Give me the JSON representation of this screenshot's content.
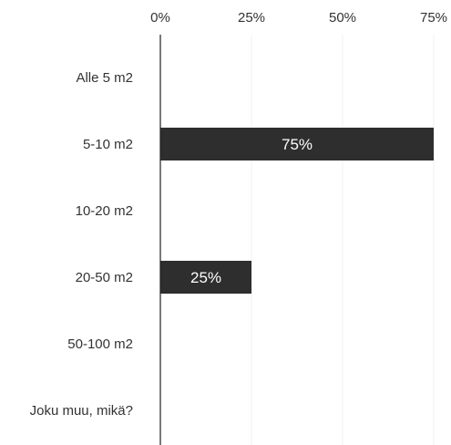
{
  "chart_data": {
    "type": "bar",
    "orientation": "horizontal",
    "categories": [
      "Alle 5 m2",
      "5-10 m2",
      "10-20 m2",
      "20-50 m2",
      "50-100 m2",
      "Joku muu, mikä?"
    ],
    "values": [
      0,
      75,
      0,
      25,
      0,
      0
    ],
    "value_labels": [
      "",
      "75%",
      "",
      "25%",
      "",
      ""
    ],
    "x_ticks": [
      "0%",
      "25%",
      "50%",
      "75%"
    ],
    "xlim": [
      0,
      75
    ],
    "x_tick_values": [
      0,
      25,
      50,
      75
    ],
    "grid": true,
    "colors": {
      "bar": "#2e2e2e",
      "bar_text": "#ffffff",
      "grid": "#f0f0f0",
      "axis": "#222222",
      "text": "#333333"
    }
  }
}
